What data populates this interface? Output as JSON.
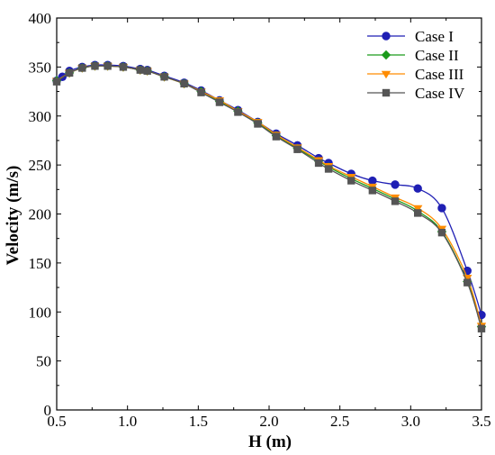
{
  "chart_data": {
    "type": "line",
    "xlabel": "H (m)",
    "ylabel": "Velocity (m/s)",
    "xlim": [
      0.5,
      3.5
    ],
    "ylim": [
      0,
      400
    ],
    "xticks": [
      0.5,
      1.0,
      1.5,
      2.0,
      2.5,
      3.0,
      3.5
    ],
    "xtick_labels": [
      "0.5",
      "1.0",
      "1.5",
      "2.0",
      "2.5",
      "3.0",
      "3.5"
    ],
    "yticks": [
      0,
      50,
      100,
      150,
      200,
      250,
      300,
      350,
      400
    ],
    "ytick_labels": [
      "0",
      "50",
      "100",
      "150",
      "200",
      "250",
      "300",
      "350",
      "400"
    ],
    "grid": false,
    "legend_position": "top-right",
    "series": [
      {
        "name": "Case I",
        "color": "#1f1fb4",
        "marker": "circle",
        "x": [
          0.5,
          0.54,
          0.59,
          0.68,
          0.77,
          0.86,
          0.97,
          1.09,
          1.14,
          1.26,
          1.4,
          1.52,
          1.65,
          1.78,
          1.92,
          2.05,
          2.2,
          2.35,
          2.42,
          2.58,
          2.73,
          2.89,
          3.05,
          3.22,
          3.4,
          3.5
        ],
        "y": [
          336,
          340,
          346,
          350,
          352,
          352,
          351,
          348,
          347,
          341,
          334,
          326,
          316,
          306,
          294,
          282,
          270,
          257,
          252,
          241,
          234,
          230,
          226,
          206,
          142,
          97
        ]
      },
      {
        "name": "Case II",
        "color": "#1a9a1a",
        "marker": "diamond",
        "x": [
          0.5,
          0.59,
          0.68,
          0.77,
          0.86,
          0.97,
          1.09,
          1.14,
          1.26,
          1.4,
          1.52,
          1.65,
          1.78,
          1.92,
          2.05,
          2.2,
          2.35,
          2.42,
          2.58,
          2.73,
          2.89,
          3.05,
          3.22,
          3.4,
          3.5
        ],
        "y": [
          336,
          344,
          349,
          351,
          351,
          350,
          347,
          346,
          340,
          333,
          325,
          315,
          305,
          293,
          280,
          267,
          254,
          248,
          236,
          226,
          215,
          203,
          182,
          131,
          85
        ]
      },
      {
        "name": "Case III",
        "color": "#ff8c00",
        "marker": "triangle-down",
        "x": [
          0.5,
          0.59,
          0.68,
          0.77,
          0.86,
          0.97,
          1.09,
          1.14,
          1.26,
          1.4,
          1.52,
          1.65,
          1.78,
          1.92,
          2.05,
          2.2,
          2.35,
          2.42,
          2.58,
          2.73,
          2.89,
          3.05,
          3.22,
          3.4,
          3.5
        ],
        "y": [
          336,
          344,
          349,
          351,
          351,
          350,
          347,
          346,
          340,
          333,
          325,
          316,
          305,
          294,
          281,
          268,
          255,
          249,
          238,
          228,
          217,
          206,
          185,
          135,
          86
        ]
      },
      {
        "name": "Case IV",
        "color": "#555555",
        "marker": "square",
        "x": [
          0.5,
          0.59,
          0.68,
          0.77,
          0.86,
          0.97,
          1.09,
          1.14,
          1.26,
          1.4,
          1.52,
          1.65,
          1.78,
          1.92,
          2.05,
          2.2,
          2.35,
          2.42,
          2.58,
          2.73,
          2.89,
          3.05,
          3.22,
          3.4,
          3.5
        ],
        "y": [
          335,
          344,
          349,
          351,
          351,
          350,
          347,
          346,
          340,
          333,
          324,
          314,
          304,
          292,
          279,
          266,
          252,
          246,
          234,
          224,
          213,
          201,
          181,
          130,
          83
        ]
      }
    ]
  }
}
